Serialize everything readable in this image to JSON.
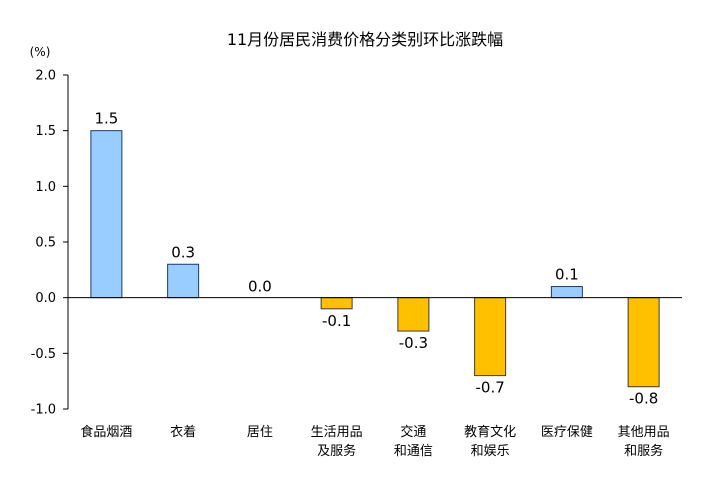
{
  "chart_data": {
    "type": "bar",
    "title": "11月份居民消费价格分类别环比涨跌幅",
    "unit_label": "(%)",
    "ylim": [
      -1.0,
      2.0
    ],
    "yticks": [
      "2.0",
      "1.5",
      "1.0",
      "0.5",
      "0.0",
      "-0.5",
      "-1.0"
    ],
    "grid": false,
    "categories": [
      [
        "食品烟酒"
      ],
      [
        "衣着"
      ],
      [
        "居住"
      ],
      [
        "生活用品",
        "及服务"
      ],
      [
        "交通",
        "和通信"
      ],
      [
        "教育文化",
        "和娱乐"
      ],
      [
        "医疗保健"
      ],
      [
        "其他用品",
        "和服务"
      ]
    ],
    "values": [
      1.5,
      0.3,
      0.0,
      -0.1,
      -0.3,
      -0.7,
      0.1,
      -0.8
    ],
    "value_labels": [
      "1.5",
      "0.3",
      "0.0",
      "-0.1",
      "-0.3",
      "-0.7",
      "0.1",
      "-0.8"
    ],
    "colors": {
      "positive_fill": "#99CCFF",
      "positive_stroke": "#1F3A66",
      "negative_fill": "#FFC000",
      "negative_stroke": "#3A3A3A",
      "axis": "#000000"
    }
  }
}
